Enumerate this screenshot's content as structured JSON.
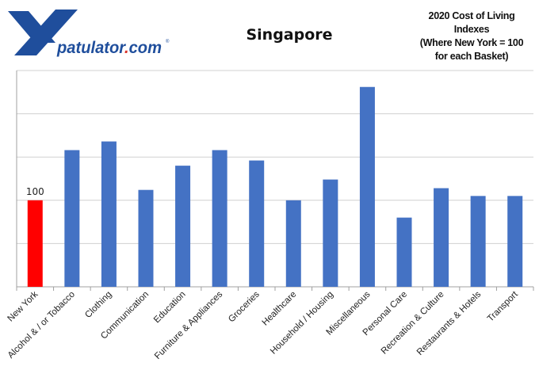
{
  "logo": {
    "text": "patulator.com",
    "brand_color": "#1f4e9c",
    "accent_color": "#d9342b"
  },
  "chart_data": {
    "type": "bar",
    "title": "Singapore",
    "subtitle": [
      "2020 Cost of Living",
      "Indexes",
      "(Where New York = 100",
      "for each Basket)"
    ],
    "categories": [
      "New York",
      "Alcohol & / or Tobacco",
      "Clothing",
      "Communication",
      "Education",
      "Furniture & Appliances",
      "Groceries",
      "Healthcare",
      "Household / Housing",
      "Miscellaneous",
      "Personal Care",
      "Recreation & Culture",
      "Restaurants & Hotels",
      "Transport"
    ],
    "values": [
      100,
      158,
      168,
      112,
      140,
      158,
      146,
      100,
      124,
      231,
      80,
      114,
      105,
      105
    ],
    "colors": {
      "highlight": "#ff0000",
      "default": "#4472c4",
      "grid": "#d0d0d0",
      "axis": "#a0a0a0"
    },
    "data_labels": [
      {
        "category": "New York",
        "text": "100"
      }
    ],
    "ylim": [
      0,
      250
    ],
    "ygrid_step": 50,
    "grid": true,
    "xlabel": "",
    "ylabel": "",
    "y_tick_labels_shown": false
  }
}
